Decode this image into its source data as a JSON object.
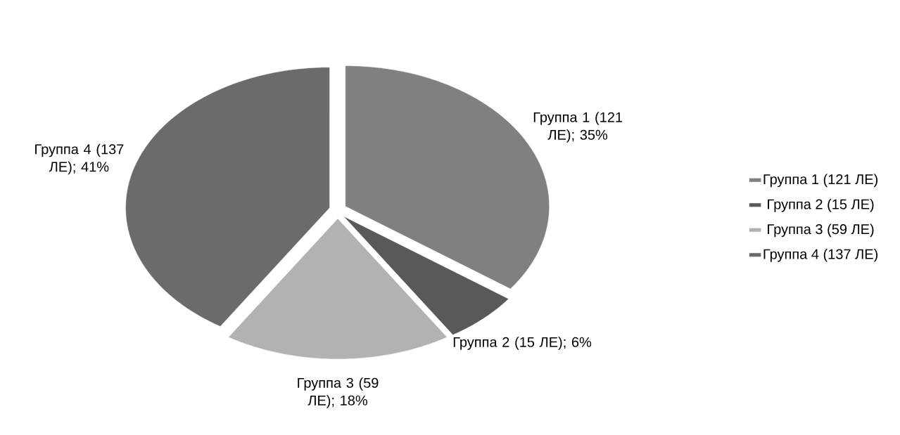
{
  "chart_data": {
    "type": "pie",
    "categories": [
      "Группа 1 (121 ЛЕ)",
      "Группа 2 (15 ЛЕ)",
      "Группа 3 (59 ЛЕ)",
      "Группа 4 (137 ЛЕ)"
    ],
    "values": [
      35,
      6,
      18,
      41
    ],
    "colors": [
      "#808080",
      "#595959",
      "#b2b2b2",
      "#6b6b6b"
    ],
    "value_labels": [
      "Группа 1 (121 ЛЕ); 35%",
      "Группа 2 (15 ЛЕ); 6%",
      "Группа 3 (59 ЛЕ); 18%",
      "Группа 4 (137 ЛЕ); 41%"
    ],
    "legend": "right"
  }
}
